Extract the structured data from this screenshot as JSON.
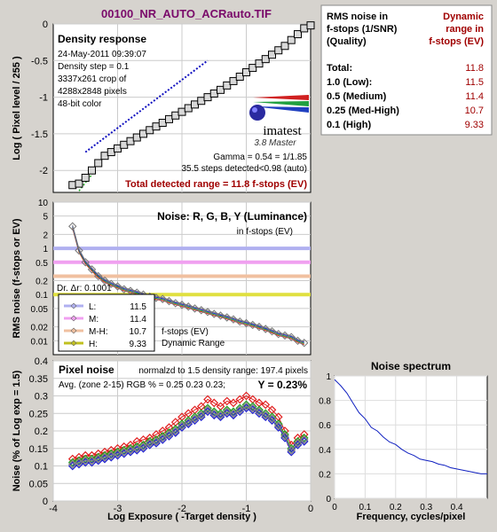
{
  "window": {
    "title": "00100_NR_AUTO_ACRauto.TIF"
  },
  "chart_data": [
    {
      "id": "density",
      "type": "line",
      "panel_title": "Density response",
      "info": [
        "24-May-2011 09:39:07",
        "Density step = 0.1",
        "3337x261 crop of",
        "4288x2848 pixels",
        "48-bit color"
      ],
      "ylabel": "Log ( Pixel level / 255 )",
      "xlim": [
        -4,
        0
      ],
      "ylim": [
        -2.3,
        0
      ],
      "yticks": [
        "0",
        "-0.5",
        "-1",
        "-1.5",
        "-2"
      ],
      "xticks": [],
      "x": [
        -3.7,
        -3.6,
        -3.5,
        -3.4,
        -3.3,
        -3.2,
        -3.1,
        -3.0,
        -2.9,
        -2.8,
        -2.7,
        -2.6,
        -2.5,
        -2.4,
        -2.3,
        -2.2,
        -2.1,
        -2.0,
        -1.9,
        -1.8,
        -1.7,
        -1.6,
        -1.5,
        -1.4,
        -1.3,
        -1.2,
        -1.1,
        -1.0,
        -0.9,
        -0.8,
        -0.7,
        -0.6,
        -0.5,
        -0.4,
        -0.3,
        -0.2,
        -0.1,
        0.0
      ],
      "y": [
        -2.2,
        -2.18,
        -2.1,
        -2.0,
        -1.9,
        -1.8,
        -1.75,
        -1.7,
        -1.65,
        -1.6,
        -1.55,
        -1.5,
        -1.45,
        -1.4,
        -1.35,
        -1.3,
        -1.25,
        -1.2,
        -1.15,
        -1.1,
        -1.05,
        -1.0,
        -0.95,
        -0.9,
        -0.84,
        -0.78,
        -0.72,
        -0.66,
        -0.6,
        -0.54,
        -0.48,
        -0.42,
        -0.36,
        -0.3,
        -0.22,
        -0.14,
        -0.06,
        -0.02
      ],
      "fit": {
        "x": [
          -3.5,
          -1.6
        ],
        "y": [
          -1.75,
          -0.5
        ]
      },
      "gamma_text": "Gamma = 0.54 = 1/1.85",
      "steps_text": "35.5 steps detected<0.98 (auto)",
      "range_text": "Total detected range = 11.8 f-stops (EV)",
      "brand": "imatest",
      "brand_sub": "3.8  Master"
    },
    {
      "id": "noise",
      "type": "line",
      "panel_title": "Noise: R, G, B, Y (Luminance)",
      "subtitle": "in f-stops (EV)",
      "ylabel": "RMS noise (f-stops or EV)",
      "scale": "log",
      "xlim": [
        -4,
        0
      ],
      "ylim": [
        0.005,
        10
      ],
      "yticks": [
        "10",
        "5",
        "2",
        "1",
        "0.5",
        "0.2",
        "0.1",
        "0.05",
        "0.02",
        "0.01"
      ],
      "reference_lines": [
        {
          "label": "L",
          "value": 1.0,
          "color": "#b0b0f0"
        },
        {
          "label": "M",
          "value": 0.5,
          "color": "#f0a0f0"
        },
        {
          "label": "M-H",
          "value": 0.25,
          "color": "#f0c0a0"
        },
        {
          "label": "H",
          "value": 0.1,
          "color": "#e0e040"
        }
      ],
      "x": [
        -3.7,
        -3.6,
        -3.5,
        -3.4,
        -3.3,
        -3.2,
        -3.1,
        -3.0,
        -2.9,
        -2.8,
        -2.7,
        -2.6,
        -2.5,
        -2.4,
        -2.3,
        -2.2,
        -2.1,
        -2.0,
        -1.9,
        -1.8,
        -1.7,
        -1.6,
        -1.5,
        -1.4,
        -1.3,
        -1.2,
        -1.1,
        -1.0,
        -0.9,
        -0.8,
        -0.7,
        -0.6,
        -0.5,
        -0.4,
        -0.3,
        -0.2,
        -0.1
      ],
      "y": [
        3.0,
        0.9,
        0.5,
        0.35,
        0.25,
        0.2,
        0.17,
        0.15,
        0.13,
        0.12,
        0.11,
        0.1,
        0.09,
        0.085,
        0.08,
        0.072,
        0.065,
        0.06,
        0.055,
        0.05,
        0.046,
        0.042,
        0.038,
        0.035,
        0.032,
        0.029,
        0.026,
        0.024,
        0.022,
        0.02,
        0.018,
        0.016,
        0.014,
        0.013,
        0.012,
        0.01,
        0.009
      ],
      "legend": [
        {
          "label": "L:",
          "value": "11.5",
          "color": "#b0b0f0"
        },
        {
          "label": "M:",
          "value": "11.4",
          "color": "#f0a0f0"
        },
        {
          "label": "M-H:",
          "value": "10.7",
          "color": "#f0c0a0"
        },
        {
          "label": "H:",
          "value": "9.33",
          "color": "#c0c020"
        }
      ],
      "legend_caption": [
        "f-stops (EV)",
        "Dynamic Range"
      ],
      "covered_label": "Dr. Δr: 0.1001"
    },
    {
      "id": "pixel_noise",
      "type": "line",
      "panel_title": "Pixel noise",
      "norm_text": "normalzd to 1.5 density range: 197.4 pixels",
      "avg_text": "Avg. (zone 2-15) RGB % = 0.25  0.23  0.23;",
      "y_text": "Y = 0.23%",
      "ylabel": "Noise (% of Log exp = 1.5)",
      "xlabel": "Log Exposure ( -Target density )",
      "xlim": [
        -4,
        0
      ],
      "ylim": [
        0,
        0.4
      ],
      "xticks": [
        "-4",
        "-3",
        "-2",
        "-1",
        "0"
      ],
      "yticks": [
        "0",
        "0.05",
        "0.1",
        "0.15",
        "0.2",
        "0.25",
        "0.3",
        "0.35",
        "0.4"
      ],
      "x": [
        -3.7,
        -3.6,
        -3.5,
        -3.4,
        -3.3,
        -3.2,
        -3.1,
        -3.0,
        -2.9,
        -2.8,
        -2.7,
        -2.6,
        -2.5,
        -2.4,
        -2.3,
        -2.2,
        -2.1,
        -2.0,
        -1.9,
        -1.8,
        -1.7,
        -1.6,
        -1.5,
        -1.4,
        -1.3,
        -1.2,
        -1.1,
        -1.0,
        -0.9,
        -0.8,
        -0.7,
        -0.6,
        -0.5,
        -0.4,
        -0.3,
        -0.2,
        -0.1
      ],
      "series": [
        {
          "name": "R",
          "color": "#e02020",
          "values": [
            0.12,
            0.125,
            0.13,
            0.13,
            0.135,
            0.14,
            0.145,
            0.15,
            0.155,
            0.16,
            0.17,
            0.175,
            0.18,
            0.19,
            0.2,
            0.21,
            0.225,
            0.24,
            0.25,
            0.26,
            0.27,
            0.29,
            0.28,
            0.27,
            0.285,
            0.28,
            0.29,
            0.3,
            0.29,
            0.28,
            0.275,
            0.26,
            0.24,
            0.2,
            0.16,
            0.18,
            0.19
          ]
        },
        {
          "name": "G",
          "color": "#20a020",
          "values": [
            0.11,
            0.115,
            0.12,
            0.12,
            0.125,
            0.13,
            0.135,
            0.14,
            0.145,
            0.15,
            0.155,
            0.16,
            0.17,
            0.175,
            0.185,
            0.195,
            0.205,
            0.22,
            0.23,
            0.24,
            0.25,
            0.265,
            0.255,
            0.25,
            0.26,
            0.255,
            0.265,
            0.275,
            0.27,
            0.26,
            0.25,
            0.24,
            0.22,
            0.19,
            0.15,
            0.17,
            0.18
          ]
        },
        {
          "name": "B",
          "color": "#2020d0",
          "values": [
            0.1,
            0.105,
            0.11,
            0.11,
            0.115,
            0.12,
            0.125,
            0.13,
            0.135,
            0.14,
            0.145,
            0.15,
            0.16,
            0.165,
            0.175,
            0.185,
            0.195,
            0.21,
            0.22,
            0.23,
            0.24,
            0.255,
            0.245,
            0.24,
            0.25,
            0.245,
            0.255,
            0.265,
            0.26,
            0.25,
            0.24,
            0.23,
            0.21,
            0.18,
            0.14,
            0.16,
            0.17
          ]
        },
        {
          "name": "Y",
          "color": "#808080",
          "values": [
            0.105,
            0.11,
            0.115,
            0.115,
            0.12,
            0.125,
            0.13,
            0.135,
            0.14,
            0.145,
            0.15,
            0.155,
            0.165,
            0.17,
            0.18,
            0.19,
            0.2,
            0.215,
            0.225,
            0.235,
            0.245,
            0.26,
            0.25,
            0.245,
            0.255,
            0.25,
            0.26,
            0.27,
            0.265,
            0.255,
            0.245,
            0.235,
            0.215,
            0.185,
            0.145,
            0.165,
            0.175
          ]
        }
      ]
    },
    {
      "id": "spectrum",
      "type": "line",
      "title": "Noise spectrum",
      "xlabel": "Frequency, cycles/pixel",
      "xlim": [
        0,
        0.5
      ],
      "ylim": [
        0,
        1
      ],
      "xticks": [
        "0",
        "0.1",
        "0.2",
        "0.3",
        "0.4"
      ],
      "yticks": [
        "0",
        "0.2",
        "0.4",
        "0.6",
        "0.8",
        "1"
      ],
      "x": [
        0.0,
        0.02,
        0.04,
        0.06,
        0.08,
        0.1,
        0.12,
        0.14,
        0.16,
        0.18,
        0.2,
        0.22,
        0.24,
        0.26,
        0.28,
        0.3,
        0.32,
        0.34,
        0.36,
        0.38,
        0.4,
        0.42,
        0.44,
        0.46,
        0.48,
        0.5
      ],
      "values": [
        0.97,
        0.92,
        0.86,
        0.78,
        0.7,
        0.65,
        0.58,
        0.55,
        0.5,
        0.46,
        0.44,
        0.4,
        0.37,
        0.35,
        0.32,
        0.31,
        0.3,
        0.28,
        0.27,
        0.25,
        0.24,
        0.23,
        0.22,
        0.21,
        0.2,
        0.2
      ]
    }
  ],
  "results_table": {
    "header_left": [
      "RMS noise in",
      "f-stops (1/SNR)",
      "(Quality)"
    ],
    "header_right": [
      "Dynamic",
      "range in",
      "f-stops (EV)"
    ],
    "rows": [
      {
        "label": "Total:",
        "value": "11.8"
      },
      {
        "label": "1.0  (Low):",
        "value": "11.5"
      },
      {
        "label": "0.5  (Medium)",
        "value": "11.4"
      },
      {
        "label": "0.25 (Med-High)",
        "value": "10.7"
      },
      {
        "label": "0.1  (High)",
        "value": "9.33"
      }
    ]
  },
  "colors": {
    "background": "#d6d3ce",
    "title": "#7a0a6a",
    "value_red": "#a00000"
  }
}
